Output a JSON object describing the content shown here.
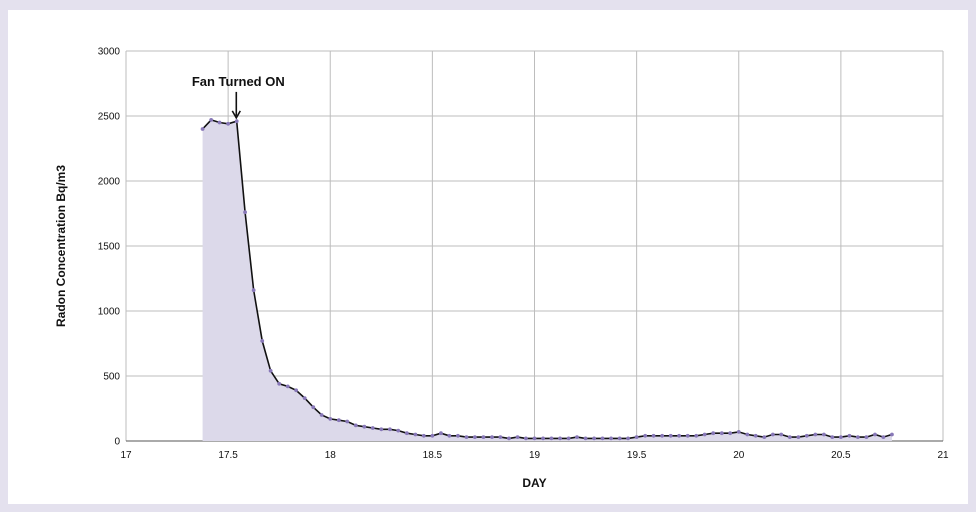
{
  "chart_data": {
    "type": "area",
    "title": "",
    "xlabel": "DAY",
    "ylabel": "Radon Concentration  Bq/m3",
    "xlim": [
      17,
      21
    ],
    "ylim": [
      0,
      3000
    ],
    "xticks": [
      17,
      17.5,
      18,
      18.5,
      19,
      19.5,
      20,
      20.5,
      21
    ],
    "xtick_labels": [
      "17",
      "17.5",
      "18",
      "18.5",
      "19",
      "19.5",
      "20",
      "20.5",
      "21"
    ],
    "yticks": [
      0,
      500,
      1000,
      1500,
      2000,
      2500,
      3000
    ],
    "ytick_labels": [
      "0",
      "500",
      "1000",
      "1500",
      "2000",
      "2500",
      "3000"
    ],
    "grid": true,
    "legend": "none",
    "colors": {
      "fill": "#dcd9ea",
      "line": "#111111",
      "marker": "#8878b8",
      "grid": "#bdbdbd"
    },
    "annotation": {
      "text": "Fan Turned ON",
      "x": 17.54,
      "y": 2470
    },
    "series": [
      {
        "x": [
          17.375,
          17.417,
          17.458,
          17.5,
          17.542,
          17.583,
          17.625,
          17.667,
          17.708,
          17.75,
          17.792,
          17.833,
          17.875,
          17.917,
          17.958,
          18.0,
          18.042,
          18.083,
          18.125,
          18.167,
          18.208,
          18.25,
          18.292,
          18.333,
          18.375,
          18.417,
          18.458,
          18.5,
          18.542,
          18.583,
          18.625,
          18.667,
          18.708,
          18.75,
          18.792,
          18.833,
          18.875,
          18.917,
          18.958,
          19.0,
          19.042,
          19.083,
          19.125,
          19.167,
          19.208,
          19.25,
          19.292,
          19.333,
          19.375,
          19.417,
          19.458,
          19.5,
          19.542,
          19.583,
          19.625,
          19.667,
          19.708,
          19.75,
          19.792,
          19.833,
          19.875,
          19.917,
          19.958,
          20.0,
          20.042,
          20.083,
          20.125,
          20.167,
          20.208,
          20.25,
          20.292,
          20.333,
          20.375,
          20.417,
          20.458,
          20.5,
          20.542,
          20.583,
          20.625,
          20.667,
          20.708,
          20.75
        ],
        "values": [
          2400,
          2470,
          2450,
          2440,
          2460,
          1760,
          1160,
          770,
          540,
          440,
          420,
          390,
          330,
          260,
          200,
          170,
          160,
          150,
          120,
          110,
          100,
          90,
          90,
          80,
          60,
          50,
          40,
          40,
          60,
          40,
          40,
          30,
          30,
          30,
          30,
          30,
          20,
          30,
          20,
          20,
          20,
          20,
          20,
          20,
          30,
          20,
          20,
          20,
          20,
          20,
          20,
          30,
          40,
          40,
          40,
          40,
          40,
          40,
          40,
          50,
          60,
          60,
          60,
          70,
          50,
          40,
          30,
          50,
          50,
          30,
          30,
          40,
          50,
          50,
          30,
          30,
          40,
          30,
          30,
          50,
          30,
          50
        ]
      }
    ]
  }
}
